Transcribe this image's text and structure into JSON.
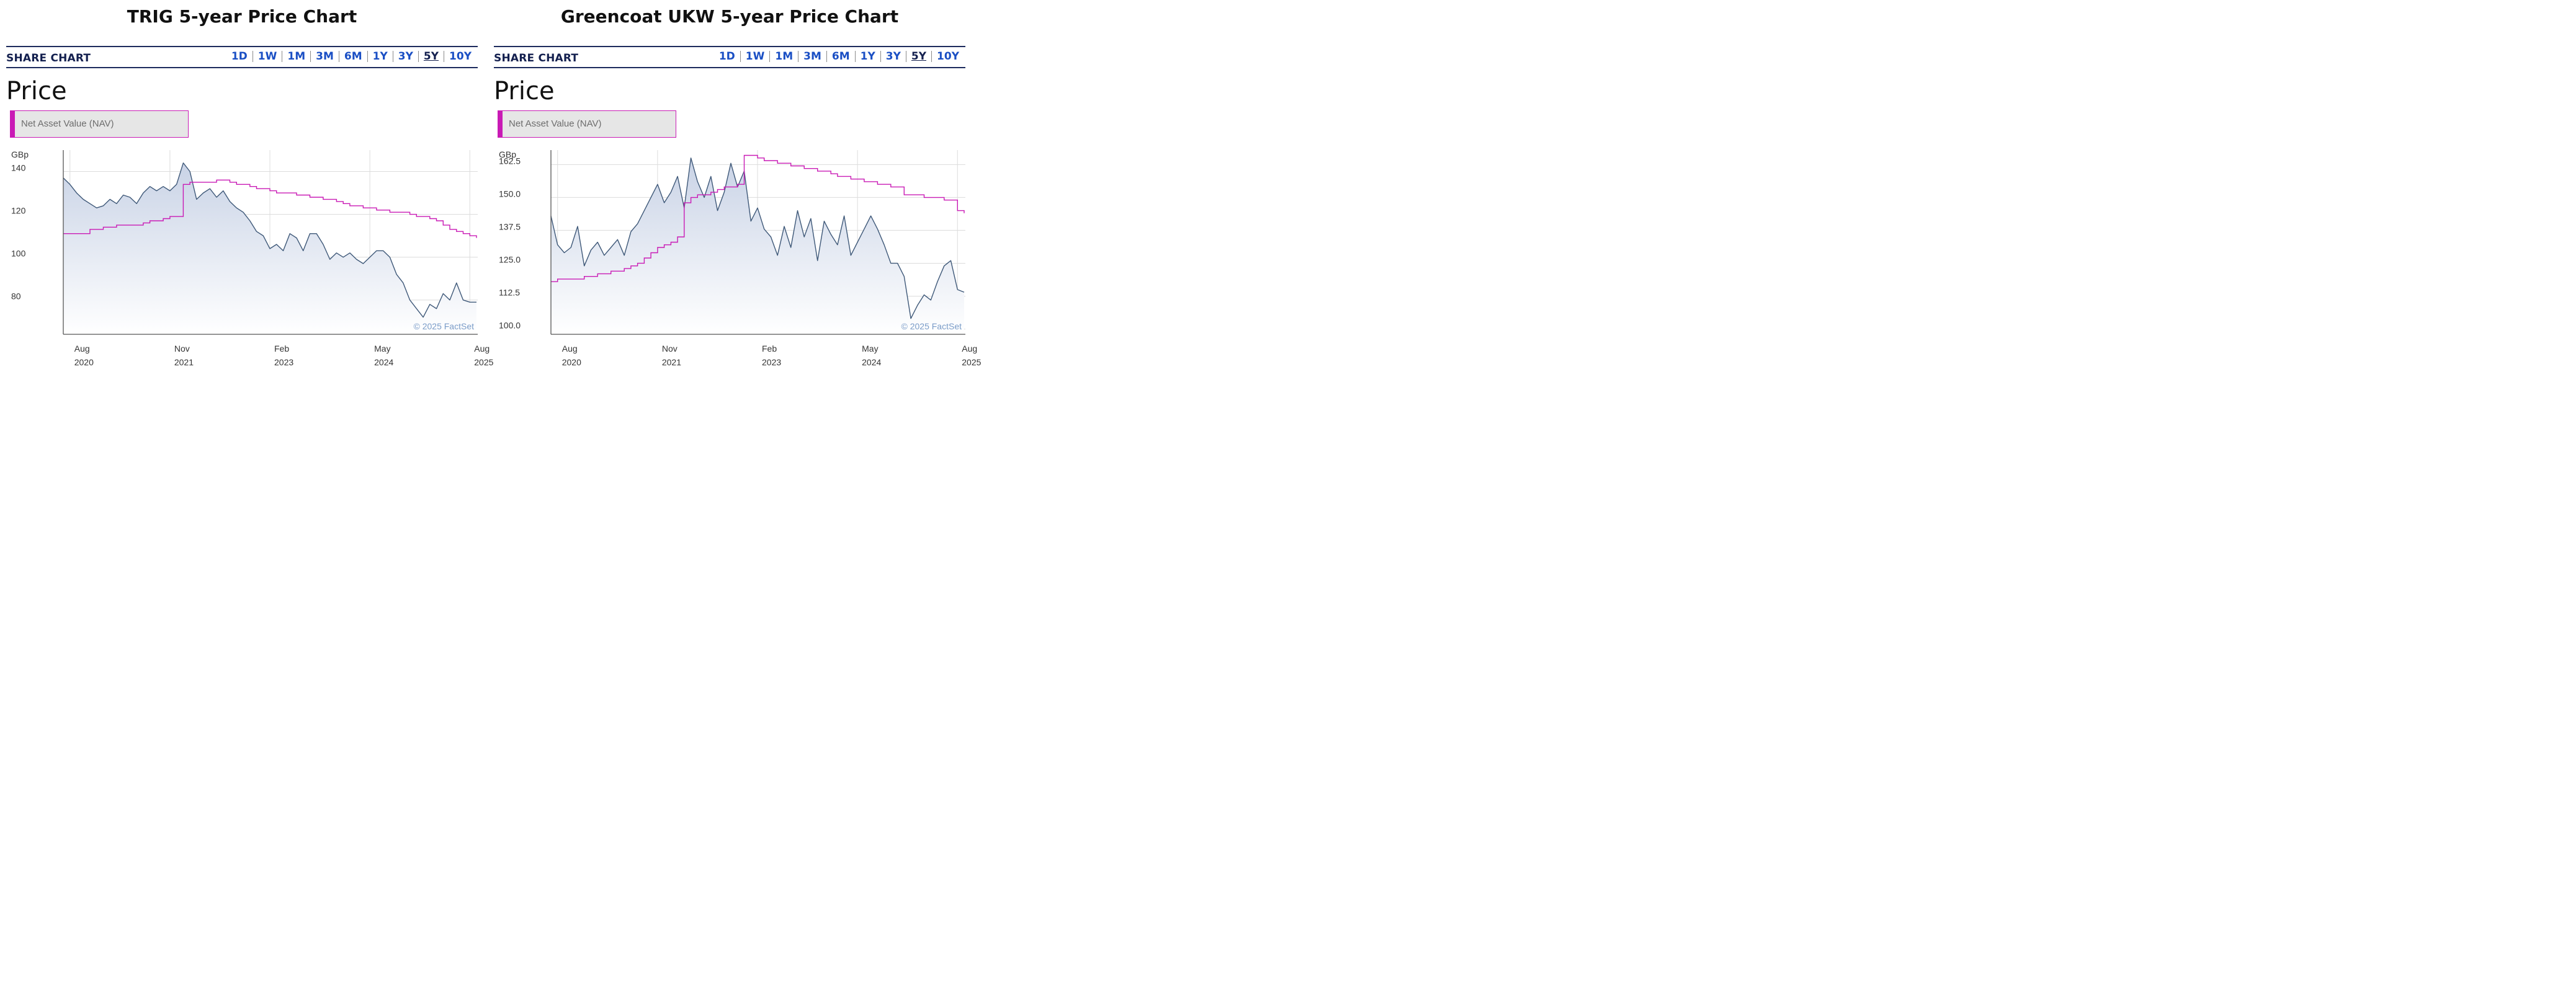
{
  "panels": [
    {
      "heading": "TRIG 5-year Price Chart",
      "widget": {
        "title": "SHARE CHART",
        "ranges": [
          "1D",
          "1W",
          "1M",
          "3M",
          "6M",
          "1Y",
          "3Y",
          "5Y",
          "10Y"
        ],
        "active_range": "5Y",
        "price_label": "Price",
        "legend_button": "Net Asset Value (NAV)",
        "currency": "GBp",
        "copyright": "© 2025 FactSet"
      }
    },
    {
      "heading": "Greencoat UKW 5-year Price Chart",
      "widget": {
        "title": "SHARE CHART",
        "ranges": [
          "1D",
          "1W",
          "1M",
          "3M",
          "6M",
          "1Y",
          "3Y",
          "5Y",
          "10Y"
        ],
        "active_range": "5Y",
        "price_label": "Price",
        "legend_button": "Net Asset Value (NAV)",
        "currency": "GBp",
        "copyright": "© 2025 FactSet"
      }
    }
  ],
  "colors": {
    "price_line": "#3e5878",
    "price_fill": "#c9d3e6",
    "nav_line": "#c91ab5",
    "grid": "#dcdcdc",
    "axis": "#555555",
    "copyright": "#7a9cc8"
  },
  "chart_data": [
    {
      "type": "area",
      "ylabel": "GBp",
      "yticks": [
        140,
        120,
        100,
        80
      ],
      "ylim": [
        64,
        150
      ],
      "x": [
        "2020-07",
        "2020-08",
        "2020-09",
        "2020-10",
        "2020-11",
        "2020-12",
        "2021-01",
        "2021-02",
        "2021-03",
        "2021-04",
        "2021-05",
        "2021-06",
        "2021-07",
        "2021-08",
        "2021-09",
        "2021-10",
        "2021-11",
        "2021-12",
        "2022-01",
        "2022-02",
        "2022-03",
        "2022-04",
        "2022-05",
        "2022-06",
        "2022-07",
        "2022-08",
        "2022-09",
        "2022-10",
        "2022-11",
        "2022-12",
        "2023-01",
        "2023-02",
        "2023-03",
        "2023-04",
        "2023-05",
        "2023-06",
        "2023-07",
        "2023-08",
        "2023-09",
        "2023-10",
        "2023-11",
        "2023-12",
        "2024-01",
        "2024-02",
        "2024-03",
        "2024-04",
        "2024-05",
        "2024-06",
        "2024-07",
        "2024-08",
        "2024-09",
        "2024-10",
        "2024-11",
        "2024-12",
        "2025-01",
        "2025-02",
        "2025-03",
        "2025-04",
        "2025-05",
        "2025-06",
        "2025-07",
        "2025-08",
        "2025-09"
      ],
      "xticks": [
        {
          "x": "2020-08",
          "month": "Aug",
          "year": "2020"
        },
        {
          "x": "2021-11",
          "month": "Nov",
          "year": "2021"
        },
        {
          "x": "2023-02",
          "month": "Feb",
          "year": "2023"
        },
        {
          "x": "2024-05",
          "month": "May",
          "year": "2024"
        },
        {
          "x": "2025-08",
          "month": "Aug",
          "year": "2025"
        }
      ],
      "series": [
        {
          "values": [
            137,
            134,
            130,
            127,
            125,
            123,
            124,
            127,
            125,
            129,
            128,
            125,
            130,
            133,
            131,
            133,
            131,
            134,
            144,
            140,
            127,
            130,
            132,
            128,
            131,
            126,
            123,
            121,
            117,
            112,
            110,
            104,
            106,
            103,
            111,
            109,
            103,
            111,
            111,
            106,
            99,
            102,
            100,
            102,
            99,
            97,
            100,
            103,
            103,
            100,
            92,
            88,
            80,
            76,
            72,
            78,
            76,
            83,
            80,
            88,
            80,
            79,
            79
          ]
        },
        {
          "values": [
            111,
            111,
            111,
            111,
            113,
            113,
            114,
            114,
            115,
            115,
            115,
            115,
            116,
            117,
            117,
            118,
            119,
            119,
            134,
            135,
            135,
            135,
            135,
            136,
            136,
            135,
            134,
            134,
            133,
            132,
            132,
            131,
            130,
            130,
            130,
            129,
            129,
            128,
            128,
            127,
            127,
            126,
            125,
            124,
            124,
            123,
            123,
            122,
            122,
            121,
            121,
            121,
            120,
            119,
            119,
            118,
            117,
            115,
            113,
            112,
            111,
            110,
            109
          ]
        }
      ]
    },
    {
      "type": "area",
      "ylabel": "GBp",
      "yticks": [
        162.5,
        150.0,
        137.5,
        125.0,
        112.5,
        100.0
      ],
      "ylim": [
        98,
        168
      ],
      "x": [
        "2020-07",
        "2020-08",
        "2020-09",
        "2020-10",
        "2020-11",
        "2020-12",
        "2021-01",
        "2021-02",
        "2021-03",
        "2021-04",
        "2021-05",
        "2021-06",
        "2021-07",
        "2021-08",
        "2021-09",
        "2021-10",
        "2021-11",
        "2021-12",
        "2022-01",
        "2022-02",
        "2022-03",
        "2022-04",
        "2022-05",
        "2022-06",
        "2022-07",
        "2022-08",
        "2022-09",
        "2022-10",
        "2022-11",
        "2022-12",
        "2023-01",
        "2023-02",
        "2023-03",
        "2023-04",
        "2023-05",
        "2023-06",
        "2023-07",
        "2023-08",
        "2023-09",
        "2023-10",
        "2023-11",
        "2023-12",
        "2024-01",
        "2024-02",
        "2024-03",
        "2024-04",
        "2024-05",
        "2024-06",
        "2024-07",
        "2024-08",
        "2024-09",
        "2024-10",
        "2024-11",
        "2024-12",
        "2025-01",
        "2025-02",
        "2025-03",
        "2025-04",
        "2025-05",
        "2025-06",
        "2025-07",
        "2025-08",
        "2025-09"
      ],
      "xticks": [
        {
          "x": "2020-08",
          "month": "Aug",
          "year": "2020"
        },
        {
          "x": "2021-11",
          "month": "Nov",
          "year": "2021"
        },
        {
          "x": "2023-02",
          "month": "Feb",
          "year": "2023"
        },
        {
          "x": "2024-05",
          "month": "May",
          "year": "2024"
        },
        {
          "x": "2025-08",
          "month": "Aug",
          "year": "2025"
        }
      ],
      "series": [
        {
          "values": [
            143,
            132,
            129,
            131,
            139,
            124,
            130,
            133,
            128,
            131,
            134,
            128,
            137,
            140,
            145,
            150,
            155,
            148,
            152,
            158,
            146,
            165,
            156,
            150,
            158,
            145,
            152,
            163,
            154,
            160,
            141,
            146,
            138,
            135,
            128,
            139,
            131,
            145,
            135,
            142,
            126,
            141,
            136,
            132,
            143,
            128,
            133,
            138,
            143,
            138,
            132,
            125,
            125,
            120,
            104,
            109,
            113,
            111,
            118,
            124,
            126,
            115,
            114
          ]
        },
        {
          "values": [
            118,
            119,
            119,
            119,
            119,
            120,
            120,
            121,
            121,
            122,
            122,
            123,
            124,
            125,
            127,
            129,
            131,
            132,
            133,
            135,
            148,
            150,
            151,
            151,
            152,
            153,
            154,
            154,
            155,
            166,
            166,
            165,
            164,
            164,
            163,
            163,
            162,
            162,
            161,
            161,
            160,
            160,
            159,
            158,
            158,
            157,
            157,
            156,
            156,
            155,
            155,
            154,
            154,
            151,
            151,
            151,
            150,
            150,
            150,
            149,
            149,
            145,
            144
          ]
        }
      ]
    }
  ]
}
